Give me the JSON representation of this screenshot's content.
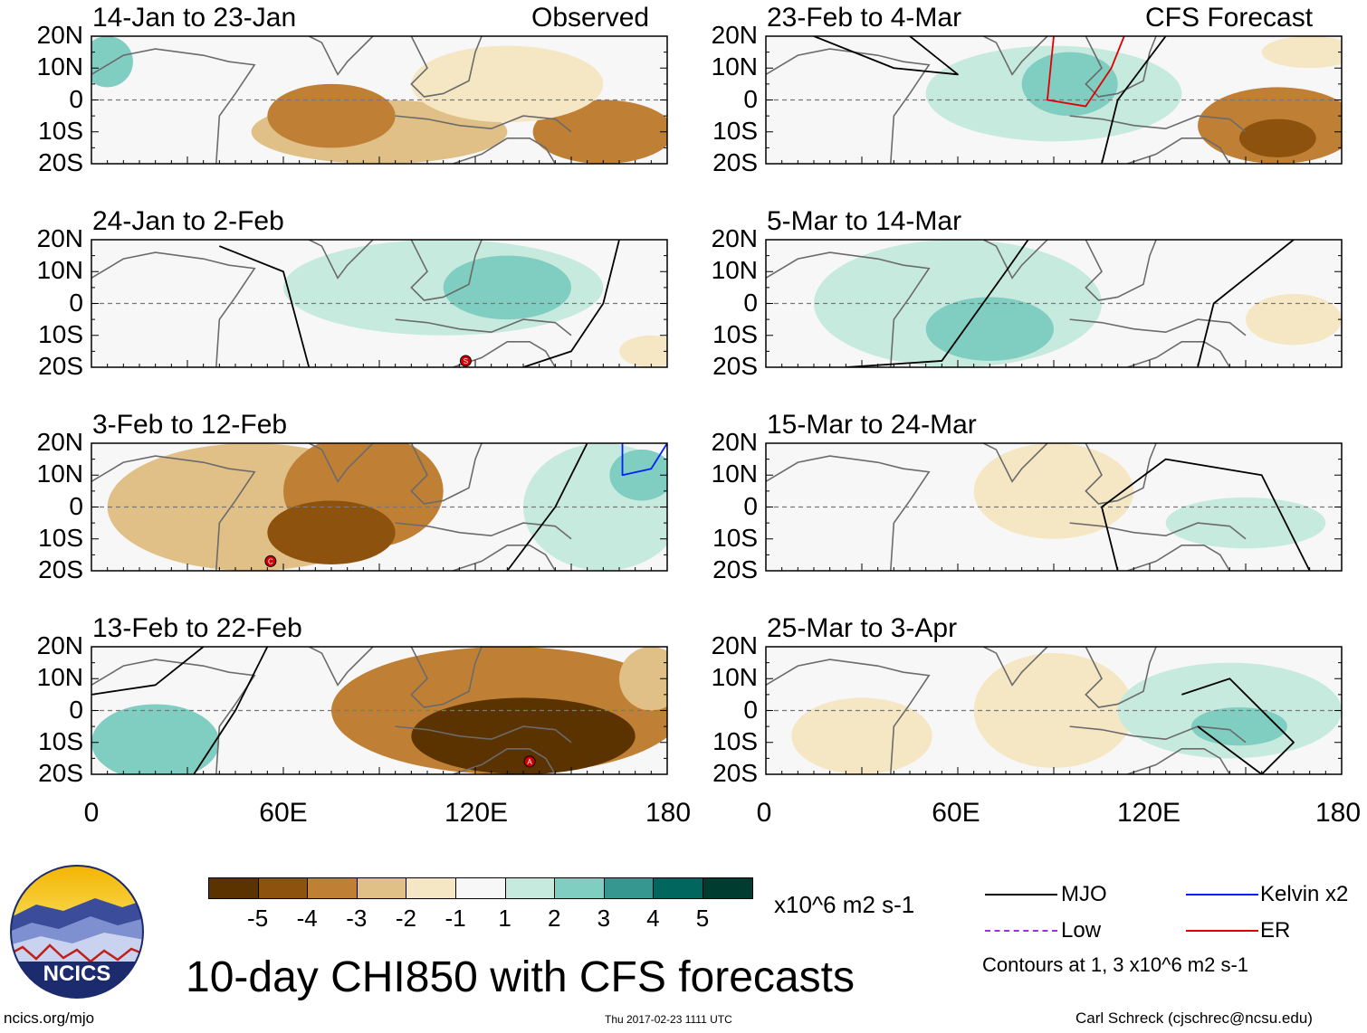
{
  "chart_data": {
    "type": "heatmap",
    "title": "10-day CHI850 with CFS forecasts",
    "variable": "CHI850",
    "units": "x10^6 m2 s-1",
    "x_ticks": [
      "0",
      "60E",
      "120E",
      "180"
    ],
    "y_ticks": [
      "20N",
      "10N",
      "0",
      "10S",
      "20S"
    ],
    "xlim": [
      0,
      180
    ],
    "ylim": [
      -20,
      20
    ],
    "colorbar": {
      "labels": [
        "-5",
        "-4",
        "-3",
        "-2",
        "-1",
        "1",
        "2",
        "3",
        "4",
        "5"
      ],
      "colors": [
        "#5a3300",
        "#8c520e",
        "#bf7f34",
        "#e0c086",
        "#f6e7c4",
        "#f7f7f7",
        "#c7eadf",
        "#80cdc1",
        "#35978f",
        "#01665e",
        "#003c30"
      ]
    },
    "columns": [
      {
        "header": "Observed",
        "panels": [
          {
            "period": "14-Jan to 23-Jan",
            "anomalies": [
              {
                "lon": 5,
                "lat": 12,
                "rx": 8,
                "ry": 8,
                "level": 2
              },
              {
                "lon": 90,
                "lat": -10,
                "rx": 40,
                "ry": 10,
                "level": -2
              },
              {
                "lon": 75,
                "lat": -5,
                "rx": 20,
                "ry": 10,
                "level": -3
              },
              {
                "lon": 160,
                "lat": -10,
                "rx": 22,
                "ry": 10,
                "level": -3
              },
              {
                "lon": 130,
                "lat": 5,
                "rx": 30,
                "ry": 12,
                "level": -1
              }
            ],
            "contours": [],
            "markers": []
          },
          {
            "period": "24-Jan to 2-Feb",
            "anomalies": [
              {
                "lon": 110,
                "lat": 5,
                "rx": 50,
                "ry": 15,
                "level": 1
              },
              {
                "lon": 130,
                "lat": 5,
                "rx": 20,
                "ry": 10,
                "level": 2
              },
              {
                "lon": 175,
                "lat": -15,
                "rx": 10,
                "ry": 5,
                "level": -1
              }
            ],
            "contours": [
              {
                "kind": "MJO",
                "points": [
                  [
                    40,
                    18
                  ],
                  [
                    60,
                    10
                  ],
                  [
                    68,
                    -20
                  ]
                ]
              },
              {
                "kind": "MJO",
                "points": [
                  [
                    165,
                    20
                  ],
                  [
                    160,
                    0
                  ],
                  [
                    150,
                    -15
                  ],
                  [
                    135,
                    -20
                  ]
                ]
              }
            ],
            "markers": [
              {
                "lon": 117,
                "lat": -18,
                "label": "S"
              }
            ]
          },
          {
            "period": "3-Feb to 12-Feb",
            "anomalies": [
              {
                "lon": 50,
                "lat": 0,
                "rx": 45,
                "ry": 20,
                "level": -2
              },
              {
                "lon": 85,
                "lat": 5,
                "rx": 25,
                "ry": 18,
                "level": -3
              },
              {
                "lon": 75,
                "lat": -8,
                "rx": 20,
                "ry": 10,
                "level": -4
              },
              {
                "lon": 160,
                "lat": 0,
                "rx": 25,
                "ry": 20,
                "level": 1
              },
              {
                "lon": 172,
                "lat": 10,
                "rx": 10,
                "ry": 8,
                "level": 2
              }
            ],
            "contours": [
              {
                "kind": "MJO",
                "points": [
                  [
                    155,
                    20
                  ],
                  [
                    145,
                    0
                  ],
                  [
                    130,
                    -20
                  ]
                ]
              },
              {
                "kind": "Kelvin x2",
                "points": [
                  [
                    166,
                    20
                  ],
                  [
                    166,
                    10
                  ],
                  [
                    175,
                    12
                  ],
                  [
                    180,
                    20
                  ]
                ]
              }
            ],
            "markers": [
              {
                "lon": 56,
                "lat": -17,
                "label": "C"
              }
            ]
          },
          {
            "period": "13-Feb to 22-Feb",
            "anomalies": [
              {
                "lon": 130,
                "lat": 0,
                "rx": 55,
                "ry": 20,
                "level": -3
              },
              {
                "lon": 135,
                "lat": -8,
                "rx": 35,
                "ry": 12,
                "level": -5
              },
              {
                "lon": 20,
                "lat": -10,
                "rx": 20,
                "ry": 12,
                "level": 2
              },
              {
                "lon": 175,
                "lat": 10,
                "rx": 10,
                "ry": 10,
                "level": -2
              }
            ],
            "contours": [
              {
                "kind": "MJO",
                "points": [
                  [
                    0,
                    5
                  ],
                  [
                    20,
                    8
                  ],
                  [
                    35,
                    20
                  ]
                ]
              },
              {
                "kind": "MJO",
                "points": [
                  [
                    55,
                    20
                  ],
                  [
                    45,
                    0
                  ],
                  [
                    32,
                    -20
                  ]
                ]
              }
            ],
            "markers": [
              {
                "lon": 137,
                "lat": -16,
                "label": "A"
              }
            ]
          }
        ]
      },
      {
        "header": "CFS Forecast",
        "panels": [
          {
            "period": "23-Feb to 4-Mar",
            "anomalies": [
              {
                "lon": 90,
                "lat": 2,
                "rx": 40,
                "ry": 15,
                "level": 1
              },
              {
                "lon": 95,
                "lat": 5,
                "rx": 15,
                "ry": 10,
                "level": 2
              },
              {
                "lon": 160,
                "lat": -8,
                "rx": 25,
                "ry": 12,
                "level": -3
              },
              {
                "lon": 160,
                "lat": -12,
                "rx": 12,
                "ry": 6,
                "level": -4
              },
              {
                "lon": 170,
                "lat": 15,
                "rx": 15,
                "ry": 5,
                "level": -1
              }
            ],
            "contours": [
              {
                "kind": "MJO",
                "points": [
                  [
                    15,
                    20
                  ],
                  [
                    40,
                    10
                  ],
                  [
                    60,
                    8
                  ],
                  [
                    45,
                    20
                  ]
                ]
              },
              {
                "kind": "MJO",
                "points": [
                  [
                    125,
                    20
                  ],
                  [
                    110,
                    0
                  ],
                  [
                    105,
                    -20
                  ]
                ]
              },
              {
                "kind": "ER",
                "points": [
                  [
                    90,
                    20
                  ],
                  [
                    88,
                    0
                  ],
                  [
                    100,
                    -2
                  ],
                  [
                    108,
                    10
                  ],
                  [
                    112,
                    20
                  ]
                ]
              }
            ],
            "markers": []
          },
          {
            "period": "5-Mar to 14-Mar",
            "anomalies": [
              {
                "lon": 60,
                "lat": 0,
                "rx": 45,
                "ry": 20,
                "level": 1
              },
              {
                "lon": 70,
                "lat": -8,
                "rx": 20,
                "ry": 10,
                "level": 2
              },
              {
                "lon": 165,
                "lat": -5,
                "rx": 15,
                "ry": 8,
                "level": -1
              }
            ],
            "contours": [
              {
                "kind": "MJO",
                "points": [
                  [
                    25,
                    -20
                  ],
                  [
                    55,
                    -18
                  ],
                  [
                    75,
                    10
                  ],
                  [
                    82,
                    20
                  ]
                ]
              },
              {
                "kind": "MJO",
                "points": [
                  [
                    165,
                    20
                  ],
                  [
                    140,
                    0
                  ],
                  [
                    135,
                    -20
                  ]
                ]
              }
            ],
            "markers": []
          },
          {
            "period": "15-Mar to 24-Mar",
            "anomalies": [
              {
                "lon": 90,
                "lat": 5,
                "rx": 25,
                "ry": 15,
                "level": -1
              },
              {
                "lon": 150,
                "lat": -5,
                "rx": 25,
                "ry": 8,
                "level": 1
              }
            ],
            "contours": [
              {
                "kind": "MJO",
                "points": [
                  [
                    110,
                    -20
                  ],
                  [
                    105,
                    0
                  ],
                  [
                    125,
                    15
                  ],
                  [
                    155,
                    10
                  ],
                  [
                    170,
                    -20
                  ]
                ]
              }
            ],
            "markers": []
          },
          {
            "period": "25-Mar to 3-Apr",
            "anomalies": [
              {
                "lon": 90,
                "lat": 0,
                "rx": 25,
                "ry": 18,
                "level": -1
              },
              {
                "lon": 30,
                "lat": -8,
                "rx": 22,
                "ry": 12,
                "level": -1
              },
              {
                "lon": 145,
                "lat": 0,
                "rx": 35,
                "ry": 15,
                "level": 1
              },
              {
                "lon": 148,
                "lat": -5,
                "rx": 15,
                "ry": 6,
                "level": 2
              }
            ],
            "contours": [
              {
                "kind": "MJO",
                "points": [
                  [
                    130,
                    5
                  ],
                  [
                    145,
                    10
                  ],
                  [
                    165,
                    -10
                  ],
                  [
                    155,
                    -20
                  ],
                  [
                    135,
                    -5
                  ]
                ]
              }
            ],
            "markers": []
          }
        ]
      }
    ],
    "legend": [
      {
        "label": "MJO",
        "color": "#000000"
      },
      {
        "label": "Kelvin x2",
        "color": "#0020ff"
      },
      {
        "label": "Low",
        "color": "#a030e0"
      },
      {
        "label": "ER",
        "color": "#e00000"
      }
    ],
    "contours_note": "Contours at 1, 3 x10^6 m2 s-1"
  },
  "logo": {
    "text": "NCICS"
  },
  "footer": {
    "url": "ncics.org/mjo",
    "timestamp": "Thu 2017-02-23 1111 UTC",
    "credit": "Carl Schreck (cjschrec@ncsu.edu)"
  }
}
